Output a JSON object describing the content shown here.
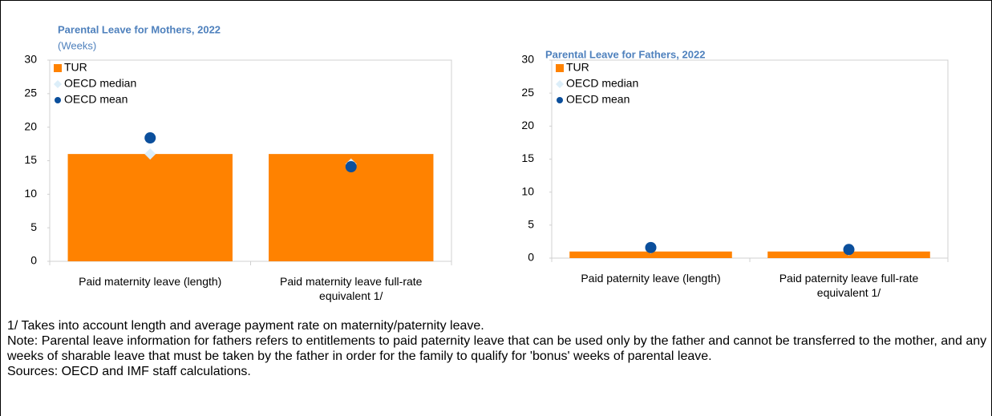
{
  "chart_data": [
    {
      "type": "bar",
      "title": "Parental Leave for Mothers, 2022",
      "subtitle": "(Weeks)",
      "categories": [
        "Paid maternity leave (length)",
        "Paid maternity leave full-rate equivalent 1/"
      ],
      "series": [
        {
          "name": "TUR",
          "color": "#ff8200",
          "marker": "bar",
          "values": [
            16,
            16
          ]
        },
        {
          "name": "OECD median",
          "color": "#dceef9",
          "marker": "diamond",
          "values": [
            16,
            14.5
          ]
        },
        {
          "name": "OECD mean",
          "color": "#0b4f9c",
          "marker": "circle",
          "values": [
            18.4,
            14.1
          ]
        }
      ],
      "ylim": [
        0,
        30
      ],
      "yticks": [
        0,
        5,
        10,
        15,
        20,
        25,
        30
      ],
      "legend": "top-left"
    },
    {
      "type": "bar",
      "title": "Parental Leave for Fathers, 2022",
      "categories": [
        "Paid paternity leave (length)",
        "Paid paternity leave full-rate equivalent 1/"
      ],
      "series": [
        {
          "name": "TUR",
          "color": "#ff8200",
          "marker": "bar",
          "values": [
            1,
            1
          ]
        },
        {
          "name": "OECD median",
          "color": "#dceef9",
          "marker": "diamond",
          "values": [
            1.5,
            1.2
          ]
        },
        {
          "name": "OECD mean",
          "color": "#0b4f9c",
          "marker": "circle",
          "values": [
            1.6,
            1.3
          ]
        }
      ],
      "ylim": [
        0,
        30
      ],
      "yticks": [
        0,
        5,
        10,
        15,
        20,
        25,
        30
      ],
      "legend": "top-left"
    }
  ],
  "notes": [
    "1/ Takes into account length and average payment rate on maternity/paternity leave.",
    "Note: Parental leave information for fathers refers to entitlements to paid paternity leave that can be used only by the father and cannot be transferred to the mother, and any weeks of sharable leave that must be taken by the father in order for the family to qualify for 'bonus' weeks of parental leave.",
    "Sources: OECD and IMF staff calculations."
  ]
}
